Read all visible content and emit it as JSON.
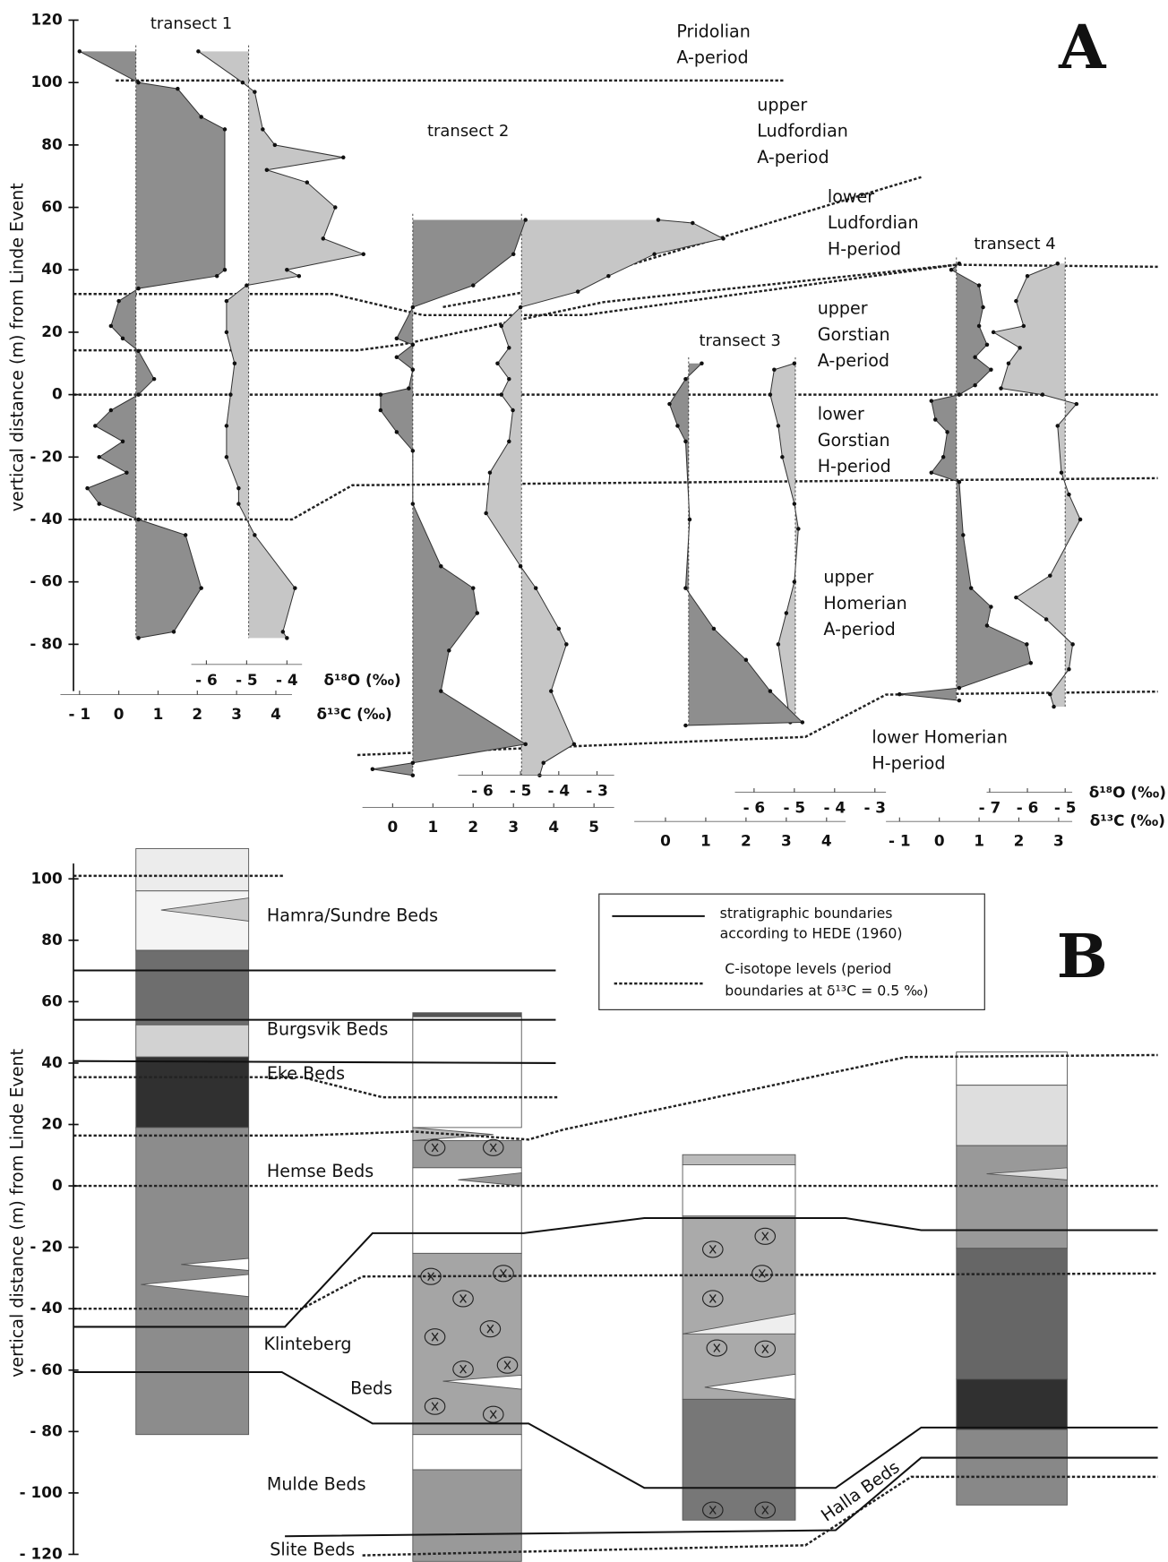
{
  "figure": {
    "panel_a": {
      "label": "A",
      "y_axis": {
        "label": "vertical distance (m) from Linde Event",
        "lim": [
          -95,
          120
        ],
        "ticks": [
          120,
          100,
          80,
          60,
          40,
          20,
          0,
          {
            "value": -20,
            "label": "- 20"
          },
          {
            "value": -40,
            "label": "- 40"
          },
          {
            "value": -60,
            "label": "- 60"
          },
          {
            "value": -80,
            "label": "- 80"
          }
        ]
      },
      "periods": [
        {
          "lines": [
            "Pridolian",
            "A-period"
          ]
        },
        {
          "lines": [
            "upper",
            "Ludfordian",
            "A-period"
          ]
        },
        {
          "lines": [
            "lower",
            "Ludfordian",
            "H-period"
          ]
        },
        {
          "lines": [
            "upper",
            "Gorstian",
            "A-period"
          ]
        },
        {
          "lines": [
            "lower",
            "Gorstian",
            "H-period"
          ]
        },
        {
          "lines": [
            "upper",
            "Homerian",
            "A-period"
          ]
        },
        {
          "lines": [
            "lower Homerian",
            "H-period"
          ]
        }
      ],
      "unit_labels": {
        "d18o": "δ¹⁸O (‰)",
        "d13c": "δ¹³C (‰)"
      },
      "transects": [
        {
          "title": "transect 1",
          "d13c_axis": {
            "label": "δ¹³C (‰)",
            "lim": [
              -1,
              4
            ],
            "ticks": [
              {
                "value": -1,
                "label": "- 1"
              },
              0,
              1,
              2,
              3,
              4
            ]
          },
          "d18o_axis": {
            "label": "δ¹⁸O (‰)",
            "lim": [
              -6,
              -4
            ],
            "ticks": [
              {
                "value": -6,
                "label": "- 6"
              },
              {
                "value": -5,
                "label": "- 5"
              },
              {
                "value": -4,
                "label": "- 4"
              }
            ]
          },
          "d13c": {
            "depth": [
              110,
              100,
              98,
              89,
              85,
              40,
              38,
              34,
              30,
              22,
              18,
              14,
              5,
              0,
              -5,
              -10,
              -15,
              -20,
              -25,
              -30,
              -35,
              -40,
              -45,
              -62,
              -76,
              -78
            ],
            "values": [
              -1,
              0.5,
              1.5,
              2.1,
              2.7,
              2.7,
              2.5,
              0.5,
              0,
              -0.2,
              0.1,
              0.5,
              0.9,
              0.5,
              -0.2,
              -0.6,
              0.1,
              -0.5,
              0.2,
              -0.8,
              -0.5,
              0.5,
              1.7,
              2.1,
              1.4,
              0.5
            ]
          },
          "d18o": {
            "depth": [
              110,
              100,
              97,
              85,
              80,
              76,
              72,
              68,
              60,
              50,
              45,
              40,
              38,
              35,
              30,
              20,
              10,
              0,
              -10,
              -20,
              -30,
              -35,
              -45,
              -62,
              -76,
              -78
            ],
            "values": [
              -6.2,
              -5.1,
              -4.8,
              -4.6,
              -4.3,
              -2.6,
              -4.5,
              -3.5,
              -2.8,
              -3.1,
              -2.1,
              -4.0,
              -3.7,
              -5.0,
              -5.5,
              -5.5,
              -5.3,
              -5.4,
              -5.5,
              -5.5,
              -5.2,
              -5.2,
              -4.8,
              -3.8,
              -4.1,
              -4.0
            ]
          }
        },
        {
          "title": "transect 2",
          "d13c_axis": {
            "lim": [
              0,
              5
            ],
            "ticks": [
              0,
              1,
              2,
              3,
              4,
              5
            ]
          },
          "d18o_axis": {
            "lim": [
              -6,
              -3
            ],
            "ticks": [
              {
                "value": -6,
                "label": "- 6"
              },
              {
                "value": -5,
                "label": "- 5"
              },
              {
                "value": -4,
                "label": "- 4"
              },
              {
                "value": -3,
                "label": "- 3"
              }
            ]
          },
          "d13c": {
            "depth": [
              56,
              45,
              35,
              28,
              18,
              16,
              12,
              8,
              2,
              0,
              -5,
              -12,
              -18,
              -35,
              -55,
              -62,
              -70,
              -82,
              -95,
              -112,
              -118,
              -120,
              -122
            ],
            "values": [
              3.3,
              3.0,
              2.0,
              0.5,
              0.1,
              0.5,
              0.1,
              0.5,
              0.4,
              -0.3,
              -0.3,
              0.1,
              0.5,
              0.5,
              1.2,
              2.0,
              2.1,
              1.4,
              1.2,
              3.3,
              0.5,
              -0.5,
              0.5
            ]
          },
          "d18o": {
            "depth": [
              56,
              55,
              50,
              45,
              38,
              33,
              28,
              22,
              15,
              10,
              5,
              0,
              -5,
              -15,
              -25,
              -38,
              -55,
              -62,
              -75,
              -80,
              -95,
              -112,
              -118,
              -122
            ],
            "values": [
              -1.4,
              -0.5,
              0.3,
              -1.5,
              -2.7,
              -3.5,
              -5.0,
              -5.5,
              -5.3,
              -5.6,
              -5.3,
              -5.5,
              -5.2,
              -5.3,
              -5.8,
              -5.9,
              -5.0,
              -4.6,
              -4.0,
              -3.8,
              -4.2,
              -3.6,
              -4.4,
              -4.5
            ]
          }
        },
        {
          "title": "transect 3",
          "d13c_axis": {
            "lim": [
              0,
              4
            ],
            "ticks": [
              0,
              1,
              2,
              3,
              4
            ]
          },
          "d18o_axis": {
            "lim": [
              -6,
              -3
            ],
            "ticks": [
              {
                "value": -6,
                "label": "- 6"
              },
              {
                "value": -5,
                "label": "- 5"
              },
              {
                "value": -4,
                "label": "- 4"
              },
              {
                "value": -3,
                "label": "- 3"
              }
            ]
          },
          "d13c": {
            "depth": [
              10,
              5,
              -3,
              -10,
              -15,
              -40,
              -62,
              -75,
              -85,
              -95,
              -105,
              -106
            ],
            "values": [
              0.9,
              0.5,
              0.1,
              0.3,
              0.5,
              0.6,
              0.5,
              1.2,
              2.0,
              2.6,
              3.4,
              0.5
            ]
          },
          "d18o": {
            "depth": [
              10,
              8,
              0,
              -10,
              -20,
              -35,
              -43,
              -60,
              -70,
              -80,
              -105
            ],
            "values": [
              -5.0,
              -5.5,
              -5.6,
              -5.4,
              -5.3,
              -5.0,
              -4.9,
              -5.0,
              -5.2,
              -5.4,
              -5.1
            ]
          }
        },
        {
          "title": "transect 4",
          "d13c_axis": {
            "lim": [
              -1,
              3
            ],
            "ticks": [
              {
                "value": -1,
                "label": "- 1"
              },
              0,
              1,
              2,
              3
            ]
          },
          "d18o_axis": {
            "lim": [
              -7,
              -5
            ],
            "ticks": [
              {
                "value": -7,
                "label": "- 7"
              },
              {
                "value": -6,
                "label": "- 6"
              },
              {
                "value": -5,
                "label": "- 5"
              }
            ]
          },
          "d13c": {
            "depth": [
              42,
              40,
              35,
              28,
              22,
              16,
              12,
              8,
              3,
              0,
              -2,
              -8,
              -12,
              -20,
              -25,
              -28,
              -45,
              -62,
              -68,
              -74,
              -80,
              -86,
              -94,
              -96,
              -98
            ],
            "values": [
              0.5,
              0.3,
              1.0,
              1.1,
              1.0,
              1.2,
              0.9,
              1.3,
              0.9,
              0.5,
              -0.2,
              -0.1,
              0.2,
              0.1,
              -0.2,
              0.5,
              0.6,
              0.8,
              1.3,
              1.2,
              2.2,
              2.3,
              0.5,
              -1.0,
              0.5
            ]
          },
          "d18o": {
            "depth": [
              42,
              38,
              30,
              22,
              20,
              15,
              10,
              2,
              0,
              -3,
              -10,
              -25,
              -32,
              -40,
              -58,
              -65,
              -72,
              -80,
              -88,
              -96,
              -100
            ],
            "values": [
              -5.2,
              -6.0,
              -6.3,
              -6.1,
              -6.9,
              -6.2,
              -6.5,
              -6.7,
              -5.6,
              -4.7,
              -5.2,
              -5.1,
              -4.9,
              -4.6,
              -5.4,
              -6.3,
              -5.5,
              -4.8,
              -4.9,
              -5.4,
              -5.3
            ]
          }
        }
      ]
    },
    "panel_b": {
      "label": "B",
      "y_axis": {
        "label": "vertical distance (m) from Linde Event",
        "lim": [
          -120,
          105
        ],
        "ticks": [
          100,
          80,
          60,
          40,
          20,
          0,
          {
            "value": -20,
            "label": "- 20"
          },
          {
            "value": -40,
            "label": "- 40"
          },
          {
            "value": -60,
            "label": "- 60"
          },
          {
            "value": -80,
            "label": "- 80"
          },
          {
            "value": -100,
            "label": "- 100"
          },
          {
            "value": -120,
            "label": "- 120"
          }
        ]
      },
      "beds": [
        "Hamra/Sundre Beds",
        "Burgsvik Beds",
        "Eke Beds",
        "Hemse Beds",
        "Klinteberg",
        "Beds",
        "Mulde Beds",
        "Halla Beds",
        "Slite Beds"
      ],
      "legend": [
        {
          "lines": [
            "stratigraphic boundaries",
            "according to HEDE (1960)"
          ]
        },
        {
          "lines": [
            "C-isotope levels (period",
            "boundaries at δ¹³C = 0.5 ‰)"
          ]
        }
      ]
    }
  }
}
